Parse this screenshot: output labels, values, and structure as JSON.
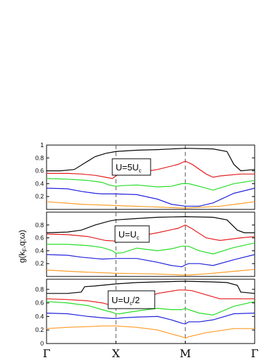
{
  "chart_data": {
    "type": "line",
    "ylabel_main": "g(k",
    "ylabel_sub": "F",
    "ylabel_rest": ",q;ω)",
    "x_tick_labels": [
      "Γ",
      "X",
      "M",
      "Γ"
    ],
    "x_ticks_at": [
      0,
      1,
      2,
      3
    ],
    "series_colors": {
      "black": "#000000",
      "red": "#e41a1c",
      "green": "#22dd22",
      "blue": "#1f1fdd",
      "orange": "#ff9922"
    },
    "panels": [
      {
        "label_main": "U=5U",
        "label_sub": "c",
        "label_tail": "",
        "ylim": [
          0,
          1
        ],
        "y_ticks": [
          0.2,
          0.4,
          0.6,
          0.8,
          1
        ],
        "y_tick_labels": [
          "0.2",
          "0.4",
          "0.6",
          "0.8",
          "1"
        ],
        "series": [
          {
            "color": "black",
            "x": [
              0,
              0.2,
              0.4,
              0.55,
              0.7,
              0.85,
              1.0,
              1.3,
              1.6,
              2.0,
              2.4,
              2.6,
              2.7,
              2.8,
              3.0
            ],
            "y": [
              0.6,
              0.6,
              0.62,
              0.72,
              0.82,
              0.87,
              0.9,
              0.92,
              0.93,
              0.95,
              0.94,
              0.9,
              0.7,
              0.6,
              0.62
            ]
          },
          {
            "color": "red",
            "x": [
              0,
              0.3,
              0.5,
              0.7,
              0.85,
              0.95,
              1.0,
              1.05,
              1.3,
              1.6,
              1.9,
              2.0,
              2.1,
              2.3,
              2.4,
              2.5,
              2.8,
              3.0
            ],
            "y": [
              0.56,
              0.56,
              0.55,
              0.53,
              0.5,
              0.48,
              0.52,
              0.55,
              0.57,
              0.62,
              0.7,
              0.75,
              0.7,
              0.55,
              0.5,
              0.52,
              0.55,
              0.55
            ]
          },
          {
            "color": "green",
            "x": [
              0,
              0.3,
              0.6,
              0.8,
              0.9,
              1.0,
              1.1,
              1.3,
              1.6,
              1.8,
              1.95,
              2.0,
              2.05,
              2.2,
              2.4,
              2.7,
              3.0
            ],
            "y": [
              0.48,
              0.47,
              0.45,
              0.42,
              0.38,
              0.36,
              0.37,
              0.38,
              0.35,
              0.36,
              0.4,
              0.4,
              0.4,
              0.36,
              0.3,
              0.4,
              0.45
            ]
          },
          {
            "color": "blue",
            "x": [
              0,
              0.3,
              0.5,
              0.7,
              0.8,
              1.0,
              1.3,
              1.6,
              1.8,
              2.0,
              2.2,
              2.4,
              2.7,
              3.0
            ],
            "y": [
              0.33,
              0.32,
              0.28,
              0.25,
              0.24,
              0.24,
              0.23,
              0.16,
              0.08,
              0.05,
              0.05,
              0.1,
              0.25,
              0.33
            ]
          },
          {
            "color": "orange",
            "x": [
              0,
              0.5,
              1.0,
              1.5,
              2.0,
              2.5,
              2.8,
              3.0
            ],
            "y": [
              0.12,
              0.08,
              0.06,
              0.04,
              0.02,
              0.05,
              0.09,
              0.12
            ]
          }
        ]
      },
      {
        "label_main": "U=U",
        "label_sub": "c",
        "label_tail": "",
        "ylim": [
          0,
          1
        ],
        "y_ticks": [
          0.2,
          0.4,
          0.6,
          0.8
        ],
        "y_tick_labels": [
          "0.2",
          "0.4",
          "0.6",
          "0.8"
        ],
        "series": [
          {
            "color": "black",
            "x": [
              0,
              0.3,
              0.5,
              0.7,
              0.9,
              1.0,
              1.3,
              1.6,
              2.0,
              2.4,
              2.6,
              2.75,
              2.85,
              3.0
            ],
            "y": [
              0.68,
              0.69,
              0.72,
              0.8,
              0.86,
              0.88,
              0.9,
              0.92,
              0.93,
              0.92,
              0.88,
              0.72,
              0.68,
              0.68
            ]
          },
          {
            "color": "red",
            "x": [
              0,
              0.3,
              0.6,
              0.85,
              1.0,
              1.1,
              1.3,
              1.6,
              1.9,
              2.0,
              2.1,
              2.3,
              2.5,
              2.8,
              3.0
            ],
            "y": [
              0.66,
              0.65,
              0.62,
              0.56,
              0.55,
              0.58,
              0.62,
              0.68,
              0.75,
              0.8,
              0.74,
              0.6,
              0.56,
              0.6,
              0.62
            ]
          },
          {
            "color": "green",
            "x": [
              0,
              0.3,
              0.6,
              0.8,
              0.95,
              1.0,
              1.1,
              1.3,
              1.6,
              1.8,
              1.95,
              2.0,
              2.05,
              2.2,
              2.4,
              2.7,
              3.0
            ],
            "y": [
              0.5,
              0.5,
              0.48,
              0.45,
              0.4,
              0.36,
              0.37,
              0.44,
              0.4,
              0.43,
              0.47,
              0.47,
              0.47,
              0.4,
              0.35,
              0.45,
              0.52
            ]
          },
          {
            "color": "blue",
            "x": [
              0,
              0.3,
              0.5,
              0.7,
              0.8,
              1.0,
              1.3,
              1.6,
              1.8,
              1.95,
              2.0,
              2.05,
              2.2,
              2.4,
              2.7,
              3.0
            ],
            "y": [
              0.34,
              0.33,
              0.3,
              0.28,
              0.27,
              0.28,
              0.28,
              0.22,
              0.17,
              0.15,
              0.18,
              0.2,
              0.2,
              0.17,
              0.26,
              0.34
            ]
          },
          {
            "color": "orange",
            "x": [
              0,
              0.5,
              1.0,
              1.5,
              1.8,
              2.0,
              2.3,
              2.7,
              3.0
            ],
            "y": [
              0.1,
              0.07,
              0.05,
              0.04,
              0.03,
              0.02,
              0.04,
              0.08,
              0.11
            ]
          }
        ]
      },
      {
        "label_main": "U=U",
        "label_sub": "c",
        "label_tail": "/2",
        "ylim": [
          0,
          0.95
        ],
        "y_ticks": [
          0,
          0.2,
          0.4,
          0.6,
          0.8
        ],
        "y_tick_labels": [
          "0",
          "0.2",
          "0.4",
          "0.6",
          "0.8"
        ],
        "series": [
          {
            "color": "black",
            "x": [
              0,
              0.3,
              0.5,
              0.55,
              0.7,
              1.0,
              1.3,
              1.6,
              2.0,
              2.4,
              2.6,
              2.75,
              2.8,
              3.0
            ],
            "y": [
              0.74,
              0.74,
              0.76,
              0.84,
              0.85,
              0.88,
              0.9,
              0.91,
              0.92,
              0.91,
              0.9,
              0.86,
              0.76,
              0.74
            ]
          },
          {
            "color": "red",
            "x": [
              0,
              0.3,
              0.6,
              0.8,
              0.95,
              1.0,
              1.1,
              1.3,
              1.6,
              1.9,
              2.0,
              2.1,
              2.3,
              2.5,
              2.8,
              3.0
            ],
            "y": [
              0.66,
              0.65,
              0.63,
              0.6,
              0.56,
              0.55,
              0.58,
              0.62,
              0.74,
              0.79,
              0.79,
              0.78,
              0.72,
              0.66,
              0.66,
              0.66
            ]
          },
          {
            "color": "green",
            "x": [
              0,
              0.3,
              0.6,
              0.8,
              0.95,
              1.0,
              1.05,
              1.3,
              1.6,
              1.8,
              1.95,
              2.0,
              2.05,
              2.2,
              2.4,
              2.7,
              3.0
            ],
            "y": [
              0.62,
              0.6,
              0.56,
              0.5,
              0.46,
              0.44,
              0.44,
              0.48,
              0.52,
              0.5,
              0.5,
              0.52,
              0.5,
              0.45,
              0.42,
              0.55,
              0.62
            ]
          },
          {
            "color": "blue",
            "x": [
              0,
              0.3,
              0.6,
              0.8,
              0.95,
              1.0,
              1.1,
              1.3,
              1.6,
              1.8,
              1.95,
              2.0,
              2.05,
              2.2,
              2.4,
              2.7,
              3.0
            ],
            "y": [
              0.45,
              0.44,
              0.4,
              0.38,
              0.37,
              0.37,
              0.38,
              0.39,
              0.4,
              0.35,
              0.3,
              0.29,
              0.32,
              0.32,
              0.35,
              0.44,
              0.45
            ]
          },
          {
            "color": "orange",
            "x": [
              0,
              0.3,
              0.6,
              0.8,
              1.0,
              1.3,
              1.6,
              1.8,
              1.95,
              2.0,
              2.05,
              2.3,
              2.7,
              3.0
            ],
            "y": [
              0.22,
              0.24,
              0.25,
              0.26,
              0.26,
              0.24,
              0.2,
              0.14,
              0.1,
              0.08,
              0.1,
              0.16,
              0.22,
              0.22
            ]
          }
        ]
      }
    ]
  }
}
